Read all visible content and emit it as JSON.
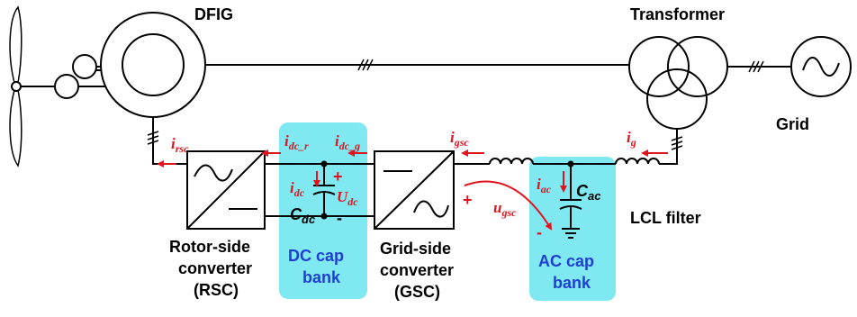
{
  "labels": {
    "dfig": "DFIG",
    "transformer": "Transformer",
    "grid": "Grid",
    "rsc": [
      "Rotor-side",
      "converter",
      "(RSC)"
    ],
    "gsc": [
      "Grid-side",
      "converter",
      "(GSC)"
    ],
    "dc_cap_bank": [
      "DC cap",
      "bank"
    ],
    "ac_cap_bank": [
      "AC cap",
      "bank"
    ],
    "lcl_filter": "LCL filter"
  },
  "symbols": {
    "i_rsc": {
      "main": "i",
      "sub": "rsc"
    },
    "i_dc_r": {
      "main": "i",
      "sub": "dc_r"
    },
    "i_dc_g": {
      "main": "i",
      "sub": "dc_g"
    },
    "i_gsc": {
      "main": "i",
      "sub": "gsc"
    },
    "i_g": {
      "main": "i",
      "sub": "g"
    },
    "i_dc": {
      "main": "i",
      "sub": "dc"
    },
    "U_dc": {
      "main": "U",
      "sub": "dc"
    },
    "C_dc": {
      "main": "C",
      "sub": "dc"
    },
    "i_ac": {
      "main": "i",
      "sub": "ac"
    },
    "C_ac": {
      "main": "C",
      "sub": "ac"
    },
    "u_gsc": {
      "main": "u",
      "sub": "gsc"
    }
  },
  "signs": {
    "plus": "+",
    "minus": "-"
  },
  "colors": {
    "highlight": "#7fe8f0",
    "annotation": "#e0141e",
    "bank_text": "#1f3fd0"
  },
  "icons": [
    "wind-turbine-icon",
    "gearbox-icon",
    "generator-icon",
    "converter-icon",
    "capacitor-icon",
    "inductor-icon",
    "transformer-icon",
    "ac-source-icon",
    "ground-icon"
  ]
}
